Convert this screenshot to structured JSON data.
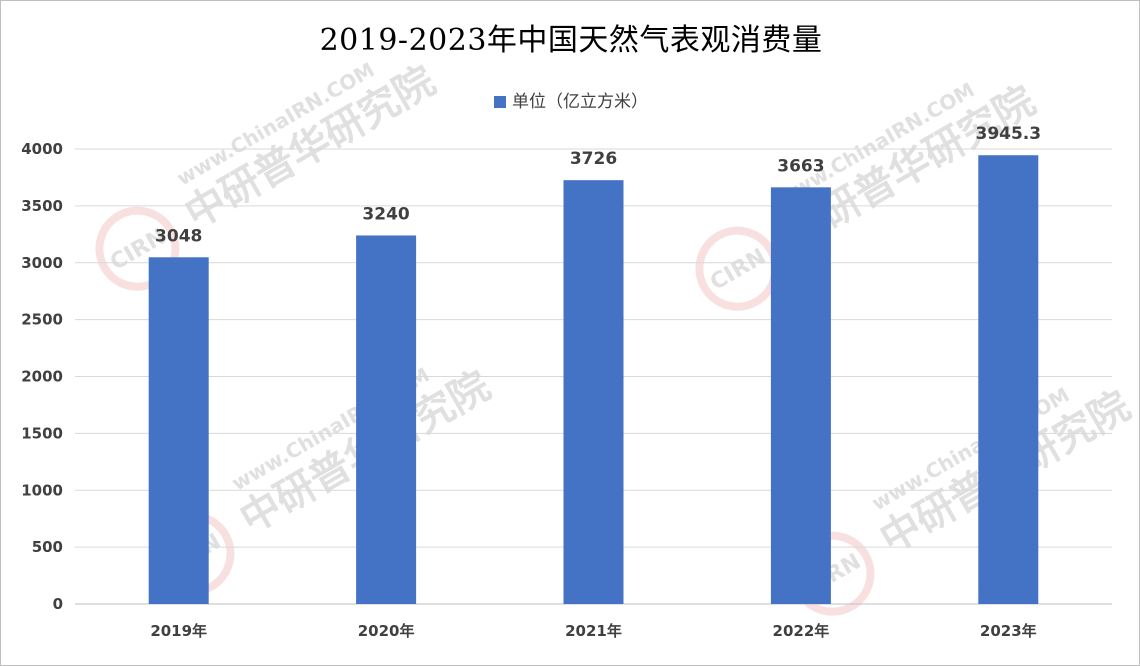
{
  "chart_data": {
    "type": "bar",
    "title": "2019-2023年中国天然气表观消费量",
    "categories": [
      "2019年",
      "2020年",
      "2021年",
      "2022年",
      "2023年"
    ],
    "series": [
      {
        "name": "单位（亿立方米）",
        "values": [
          3048,
          3240,
          3726,
          3663,
          3945.3
        ]
      }
    ],
    "data_labels": [
      "3048",
      "3240",
      "3726",
      "3663",
      "3945.3"
    ],
    "y_ticks": [
      "0",
      "500",
      "1000",
      "1500",
      "2000",
      "2500",
      "3000",
      "3500",
      "4000"
    ],
    "ylim": [
      0,
      4000
    ],
    "grid": true,
    "legend_position": "top",
    "colors": {
      "bar": "#4472c4",
      "grid": "#d9d9d9",
      "axis": "#bfbfbf"
    }
  },
  "watermark": {
    "brand_cn": "中研普华研究院",
    "brand_url": "www.ChinaIRN.COM",
    "logo": "CIRN"
  }
}
